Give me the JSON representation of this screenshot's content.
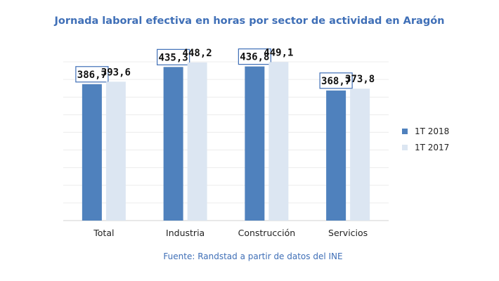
{
  "chart_data": {
    "type": "bar",
    "title": "Jornada laboral efectiva en horas por sector de actividad en Aragón",
    "categories": [
      "Total",
      "Industria",
      "Construcción",
      "Servicios"
    ],
    "series": [
      {
        "name": "1T 2018",
        "values": [
          386.7,
          435.3,
          436.8,
          368.7
        ],
        "labels": [
          "386,7",
          "435,3",
          "436,8",
          "368,7"
        ],
        "color": "#4f81bd"
      },
      {
        "name": "1T 2017",
        "values": [
          393.6,
          448.2,
          449.1,
          373.8
        ],
        "labels": [
          "393,6",
          "448,2",
          "449,1",
          "373,8"
        ],
        "color": "#dce6f2"
      }
    ],
    "ylim": [
      0,
      460
    ],
    "grid": true,
    "legend_position": "right",
    "label_box_color": "#3f6fb7"
  },
  "source": "Fuente: Randstad a partir de datos del INE"
}
